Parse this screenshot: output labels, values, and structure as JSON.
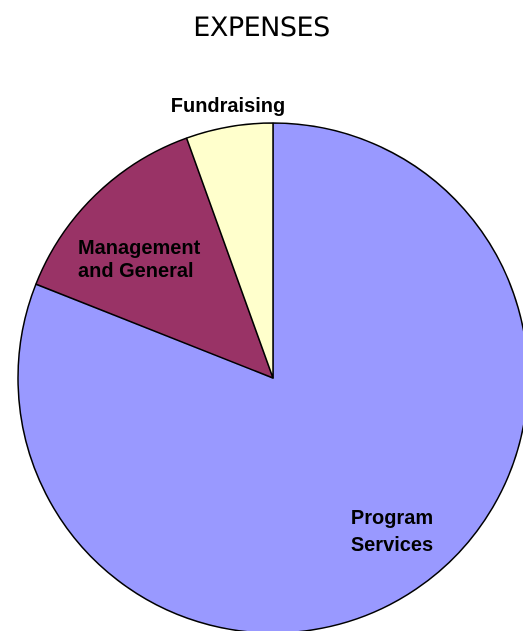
{
  "chart_data": {
    "type": "pie",
    "title": "EXPENSES",
    "start": "12 o'clock",
    "direction": "clockwise",
    "legend": "none",
    "slices": [
      {
        "label": "Program Services",
        "value": 81,
        "color": "#9999FF"
      },
      {
        "label": "Management and General",
        "value": 13.5,
        "color": "#993366"
      },
      {
        "label": "Fundraising",
        "value": 5.5,
        "color": "#FFFFCC"
      }
    ],
    "outline_color": "#000000"
  }
}
